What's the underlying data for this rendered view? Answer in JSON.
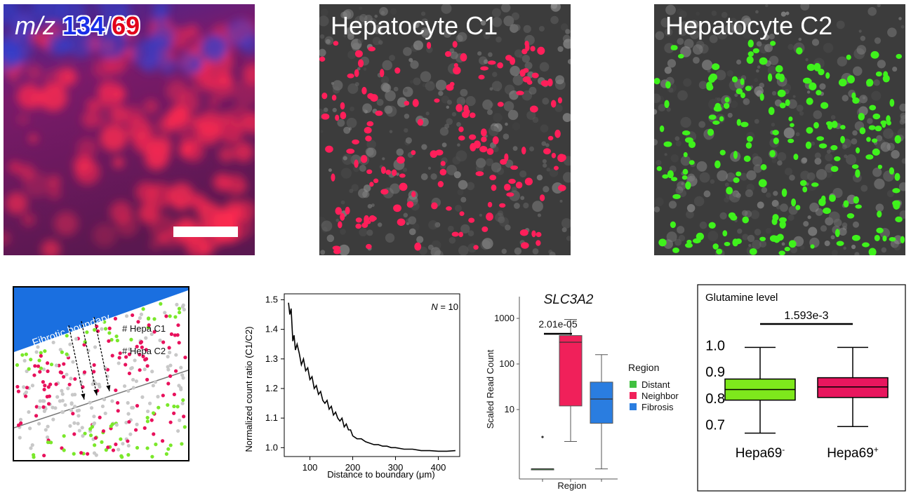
{
  "panels": {
    "msi": {
      "mz_label": "m/z",
      "mz_value_a": "134",
      "mz_sep": "/",
      "mz_value_b": "69",
      "color_a": "#1a2ee8",
      "color_b": "#e2001a"
    },
    "c1": {
      "title": "Hepatocyte C1",
      "dot_color": "#ff1f5a"
    },
    "c2": {
      "title": "Hepatocyte C2",
      "dot_color": "#3ff21c"
    }
  },
  "schematic": {
    "boundary_label": "Fibrotic boundary",
    "legend_c1": "# Hepa C1",
    "legend_c2": "# Hepa C2",
    "boundary_color": "#1a6fe0",
    "c1_color": "#e8115c",
    "c2_color": "#7ae82a",
    "other_color": "#c8c8c8"
  },
  "chart_data": [
    {
      "type": "line",
      "title": "",
      "annotation": "N = 10",
      "annotation_italic": "N",
      "annotation_rest": " = 10",
      "xlabel": "Distance to boundary (μm)",
      "ylabel": "Normalized count ratio (C1/C2)",
      "xlim": [
        40,
        450
      ],
      "ylim": [
        0.97,
        1.52
      ],
      "xticks": [
        "100",
        "200",
        "300",
        "400"
      ],
      "xtick_values": [
        100,
        200,
        300,
        400
      ],
      "yticks": [
        "1.0",
        "1.1",
        "1.2",
        "1.3",
        "1.4",
        "1.5"
      ],
      "ytick_values": [
        1.0,
        1.1,
        1.2,
        1.3,
        1.4,
        1.5
      ],
      "x": [
        50,
        53,
        56,
        60,
        63,
        66,
        70,
        75,
        80,
        85,
        90,
        95,
        100,
        105,
        110,
        115,
        120,
        125,
        130,
        135,
        140,
        145,
        150,
        155,
        160,
        165,
        170,
        175,
        180,
        185,
        190,
        195,
        200,
        210,
        220,
        230,
        240,
        250,
        260,
        270,
        280,
        290,
        300,
        320,
        340,
        360,
        380,
        400,
        420,
        440
      ],
      "y": [
        1.49,
        1.45,
        1.47,
        1.36,
        1.38,
        1.33,
        1.35,
        1.32,
        1.28,
        1.3,
        1.26,
        1.27,
        1.23,
        1.24,
        1.2,
        1.21,
        1.18,
        1.19,
        1.16,
        1.15,
        1.16,
        1.13,
        1.14,
        1.11,
        1.12,
        1.1,
        1.09,
        1.1,
        1.07,
        1.08,
        1.06,
        1.06,
        1.04,
        1.03,
        1.03,
        1.02,
        1.015,
        1.01,
        1.01,
        1.005,
        1.005,
        1.0,
        1.0,
        0.995,
        0.995,
        0.99,
        0.99,
        0.988,
        0.988,
        0.99
      ]
    },
    {
      "type": "box",
      "title": "SLC3A2",
      "xlabel": "Region",
      "ylabel": "Scaled Read Count",
      "yscale": "log",
      "ylim": [
        0.3,
        3000
      ],
      "yticks": [
        "10",
        "100",
        "1000"
      ],
      "ytick_values": [
        10,
        100,
        1000
      ],
      "legend_title": "Region",
      "legend_position": "right",
      "series": [
        {
          "name": "Distant",
          "color": "#40c040",
          "min": 0.5,
          "q1": 0.5,
          "median": 0.5,
          "q3": 0.5,
          "max": 0.5,
          "outliers": [
            2.5
          ]
        },
        {
          "name": "Neighbor",
          "color": "#f0205a",
          "min": 2.0,
          "q1": 12,
          "median": 300,
          "q3": 420,
          "max": 950,
          "outliers": []
        },
        {
          "name": "Fibrosis",
          "color": "#2a7de0",
          "min": 0.5,
          "q1": 5,
          "median": 17,
          "q3": 40,
          "max": 160,
          "outliers": []
        }
      ],
      "pvalue": "2.01e-05"
    },
    {
      "type": "box",
      "title": "Glutamine level",
      "ylim": [
        0.64,
        1.06
      ],
      "yticks": [
        "0.7",
        "0.8",
        "0.9",
        "1.0"
      ],
      "ytick_values": [
        0.7,
        0.8,
        0.9,
        1.0
      ],
      "categories": [
        "Hepa69",
        "Hepa69"
      ],
      "category_sup": [
        "-",
        "+"
      ],
      "series": [
        {
          "color": "#7ee81c",
          "min": 0.665,
          "q1": 0.79,
          "median": 0.83,
          "q3": 0.87,
          "max": 0.99
        },
        {
          "color": "#e8165e",
          "min": 0.69,
          "q1": 0.8,
          "median": 0.84,
          "q3": 0.875,
          "max": 0.99
        }
      ],
      "pvalue": "1.593e-3"
    }
  ]
}
